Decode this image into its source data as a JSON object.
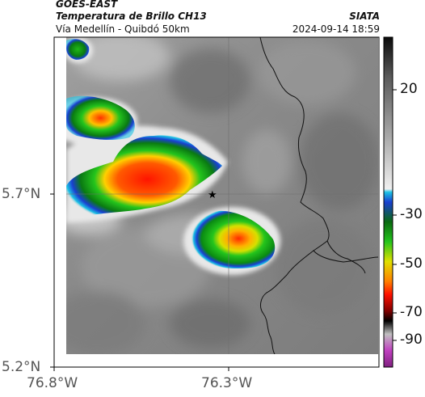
{
  "header": {
    "satellite": "GOES-EAST",
    "product": "Temperatura de Brillo CH13",
    "route": "Vía Medellín - Quibdó 50km",
    "agency": "SIATA",
    "timestamp": "2024-09-14 18:59"
  },
  "axes": {
    "lat_ticks": [
      "5.7°N",
      "5.2°N"
    ],
    "lon_ticks": [
      "76.8°W",
      "76.3°W"
    ]
  },
  "colorbar": {
    "ticks": [
      "20",
      "-30",
      "-50",
      "-70",
      "-90"
    ]
  },
  "marker": {
    "symbol": "★",
    "name": "reference-point"
  },
  "colors": {
    "cloud_cold": "#ff2000",
    "cloud_mid": "#21c41a",
    "cloud_edge": "#1a3fd1",
    "cloud_halo": "#1cc2e4",
    "background_gray": "#8c8c8c"
  }
}
